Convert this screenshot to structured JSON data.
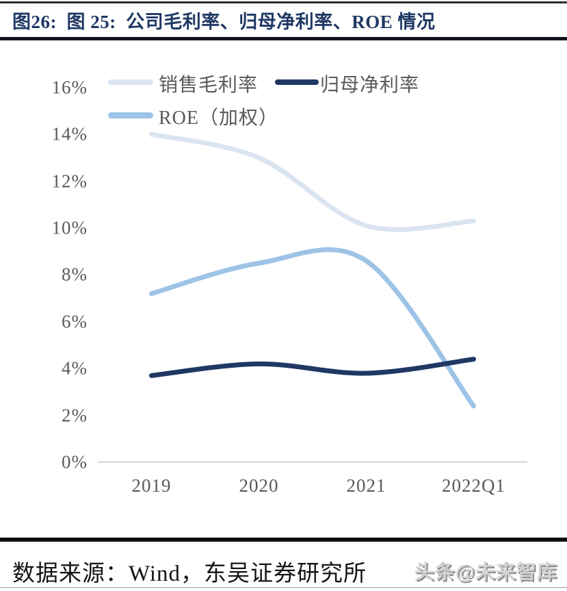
{
  "header": {
    "title": "图26:  图 25:  公司毛利率、归母净利率、ROE 情况"
  },
  "chart_data": {
    "type": "line",
    "title": "公司毛利率、归母净利率、ROE 情况",
    "categories": [
      "2019",
      "2020",
      "2021",
      "2022Q1"
    ],
    "series": [
      {
        "name": "销售毛利率",
        "color": "#dbe5f1",
        "values": [
          14.0,
          13.0,
          10.1,
          10.3
        ]
      },
      {
        "name": "归母净利率",
        "color": "#1f3864",
        "values": [
          3.7,
          4.2,
          3.8,
          4.4
        ]
      },
      {
        "name": "ROE（加权）",
        "color": "#9dc3e6",
        "values": [
          7.2,
          8.5,
          8.6,
          2.4
        ]
      }
    ],
    "ylim": [
      0,
      16
    ],
    "ytick_step": 2,
    "ytick_labels": [
      "0%",
      "2%",
      "4%",
      "6%",
      "8%",
      "10%",
      "12%",
      "14%",
      "16%"
    ],
    "grid": false,
    "smooth": true,
    "legend_position": "top-left",
    "axis_line_color": "#d9d9d9",
    "tick_text_color": "#595959"
  },
  "footer": {
    "source": "数据来源：Wind，东吴证券研究所",
    "watermark": "头条@未来智库"
  },
  "colors": {
    "title_text": "#1f3864",
    "rule_dark": "#12121c",
    "gross_margin_line": "#dbe5f1",
    "net_margin_line": "#1f3864",
    "roe_line": "#9dc3e6"
  }
}
